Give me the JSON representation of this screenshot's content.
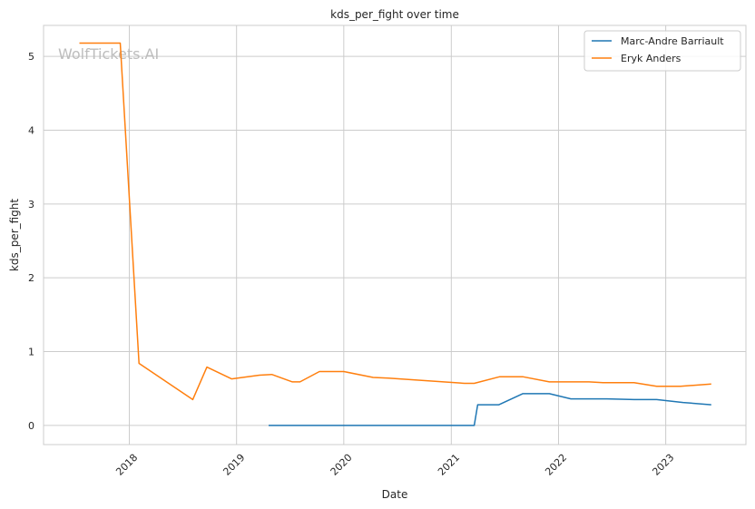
{
  "chart_data": {
    "type": "line",
    "title": "kds_per_fight over time",
    "xlabel": "Date",
    "ylabel": "kds_per_fight",
    "watermark": "WolfTickets.AI",
    "x_type": "date",
    "xlim": [
      "2017-03-15",
      "2023-10-01"
    ],
    "ylim": [
      -0.26,
      5.42
    ],
    "x_ticks": [
      "2018-01-01",
      "2019-01-01",
      "2020-01-01",
      "2021-01-01",
      "2022-01-01",
      "2023-01-01"
    ],
    "x_tick_labels": [
      "2018",
      "2019",
      "2020",
      "2021",
      "2022",
      "2023"
    ],
    "y_ticks": [
      0,
      1,
      2,
      3,
      4,
      5
    ],
    "y_tick_labels": [
      "0",
      "1",
      "2",
      "3",
      "4",
      "5"
    ],
    "grid": true,
    "legend_position": "top-right",
    "series": [
      {
        "name": "Marc-Andre Barriault",
        "color": "#1f77b4",
        "points": [
          [
            "2019-04-20",
            0.0
          ],
          [
            "2021-03-20",
            0.0
          ],
          [
            "2021-04-01",
            0.28
          ],
          [
            "2021-06-12",
            0.28
          ],
          [
            "2021-09-01",
            0.43
          ],
          [
            "2021-12-01",
            0.43
          ],
          [
            "2022-02-12",
            0.36
          ],
          [
            "2022-06-15",
            0.36
          ],
          [
            "2022-09-15",
            0.35
          ],
          [
            "2022-12-01",
            0.35
          ],
          [
            "2023-03-01",
            0.31
          ],
          [
            "2023-06-05",
            0.28
          ]
        ]
      },
      {
        "name": "Eryk Anders",
        "color": "#ff7f0e",
        "points": [
          [
            "2017-07-15",
            5.18
          ],
          [
            "2017-12-01",
            5.18
          ],
          [
            "2018-02-03",
            0.84
          ],
          [
            "2018-08-05",
            0.35
          ],
          [
            "2018-09-22",
            0.79
          ],
          [
            "2018-12-15",
            0.63
          ],
          [
            "2019-03-20",
            0.68
          ],
          [
            "2019-05-01",
            0.69
          ],
          [
            "2019-07-10",
            0.59
          ],
          [
            "2019-08-05",
            0.59
          ],
          [
            "2019-10-10",
            0.73
          ],
          [
            "2020-01-01",
            0.73
          ],
          [
            "2020-04-10",
            0.65
          ],
          [
            "2020-06-01",
            0.64
          ],
          [
            "2021-02-15",
            0.57
          ],
          [
            "2021-03-20",
            0.57
          ],
          [
            "2021-06-15",
            0.66
          ],
          [
            "2021-09-01",
            0.66
          ],
          [
            "2021-12-01",
            0.59
          ],
          [
            "2022-04-15",
            0.59
          ],
          [
            "2022-06-01",
            0.58
          ],
          [
            "2022-09-15",
            0.58
          ],
          [
            "2022-12-01",
            0.53
          ],
          [
            "2023-02-20",
            0.53
          ],
          [
            "2023-06-05",
            0.56
          ]
        ]
      }
    ]
  }
}
